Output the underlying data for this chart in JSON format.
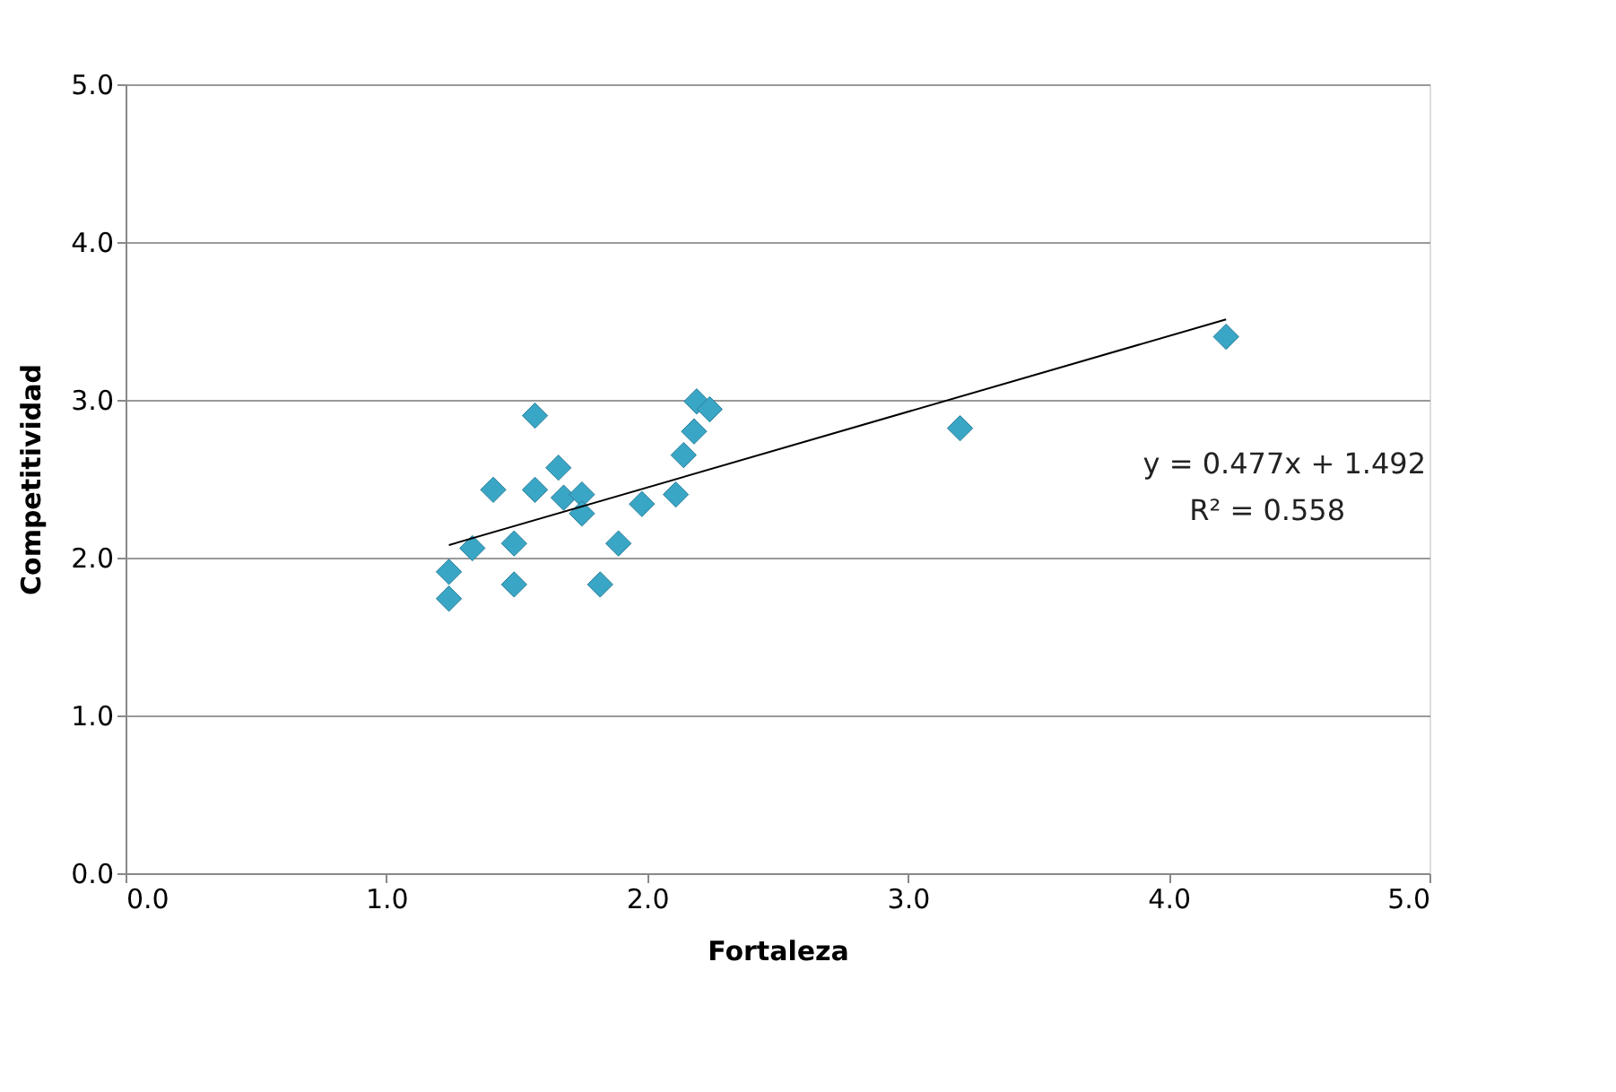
{
  "chart_data": {
    "type": "scatter",
    "xlabel": "Fortaleza",
    "ylabel": "Competitividad",
    "xlim": [
      0,
      5
    ],
    "ylim": [
      0,
      5
    ],
    "xticks": [
      {
        "value": 0,
        "label": "0.0"
      },
      {
        "value": 1,
        "label": "1.0"
      },
      {
        "value": 2,
        "label": "2.0"
      },
      {
        "value": 3,
        "label": "3.0"
      },
      {
        "value": 4,
        "label": "4.0"
      },
      {
        "value": 5,
        "label": "5.0"
      }
    ],
    "yticks": [
      {
        "value": 0,
        "label": "0.0"
      },
      {
        "value": 1,
        "label": "1.0"
      },
      {
        "value": 2,
        "label": "2.0"
      },
      {
        "value": 3,
        "label": "3.0"
      },
      {
        "value": 4,
        "label": "4.0"
      },
      {
        "value": 5,
        "label": "5.0"
      }
    ],
    "grid": "y",
    "marker": "diamond",
    "series": [
      {
        "color": "#3aa6c6",
        "x": [
          1.57,
          1.41,
          1.57,
          1.66,
          1.68,
          1.75,
          1.75,
          1.33,
          1.49,
          1.24,
          1.24,
          1.49,
          1.82,
          1.89,
          1.98,
          2.11,
          2.14,
          2.18,
          2.19,
          2.24,
          3.2,
          4.22
        ],
        "values": [
          2.9,
          2.43,
          2.43,
          2.57,
          2.38,
          2.4,
          2.28,
          2.06,
          2.09,
          1.91,
          1.74,
          1.83,
          1.83,
          2.09,
          2.34,
          2.4,
          2.65,
          2.8,
          2.99,
          2.94,
          2.82,
          3.4
        ]
      },
      {
        "type": "line",
        "marker": "none",
        "color": "#000000",
        "x": [
          1.24,
          4.22
        ],
        "values": [
          2.08,
          3.51
        ]
      }
    ],
    "annotations": [
      "y = 0.477x + 1.492",
      "R² = 0.558"
    ]
  }
}
